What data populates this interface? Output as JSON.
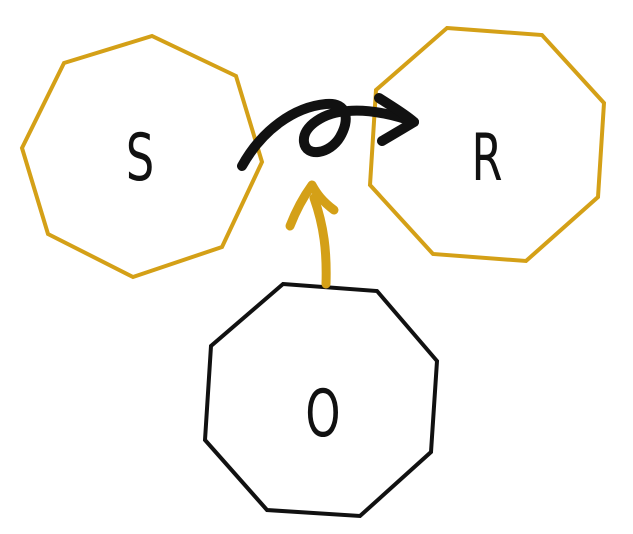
{
  "nodes": [
    {
      "id": "S",
      "label": "S",
      "color": "#D4A017"
    },
    {
      "id": "R",
      "label": "R",
      "color": "#D4A017"
    },
    {
      "id": "O",
      "label": "O",
      "color": "#111111"
    }
  ],
  "edges": [
    {
      "from": "S",
      "to": "R",
      "style": "black-curly-arrow",
      "color": "#111111"
    },
    {
      "from": "O",
      "to": "S-R-arrow",
      "style": "gold-arrow",
      "color": "#D4A017"
    }
  ]
}
